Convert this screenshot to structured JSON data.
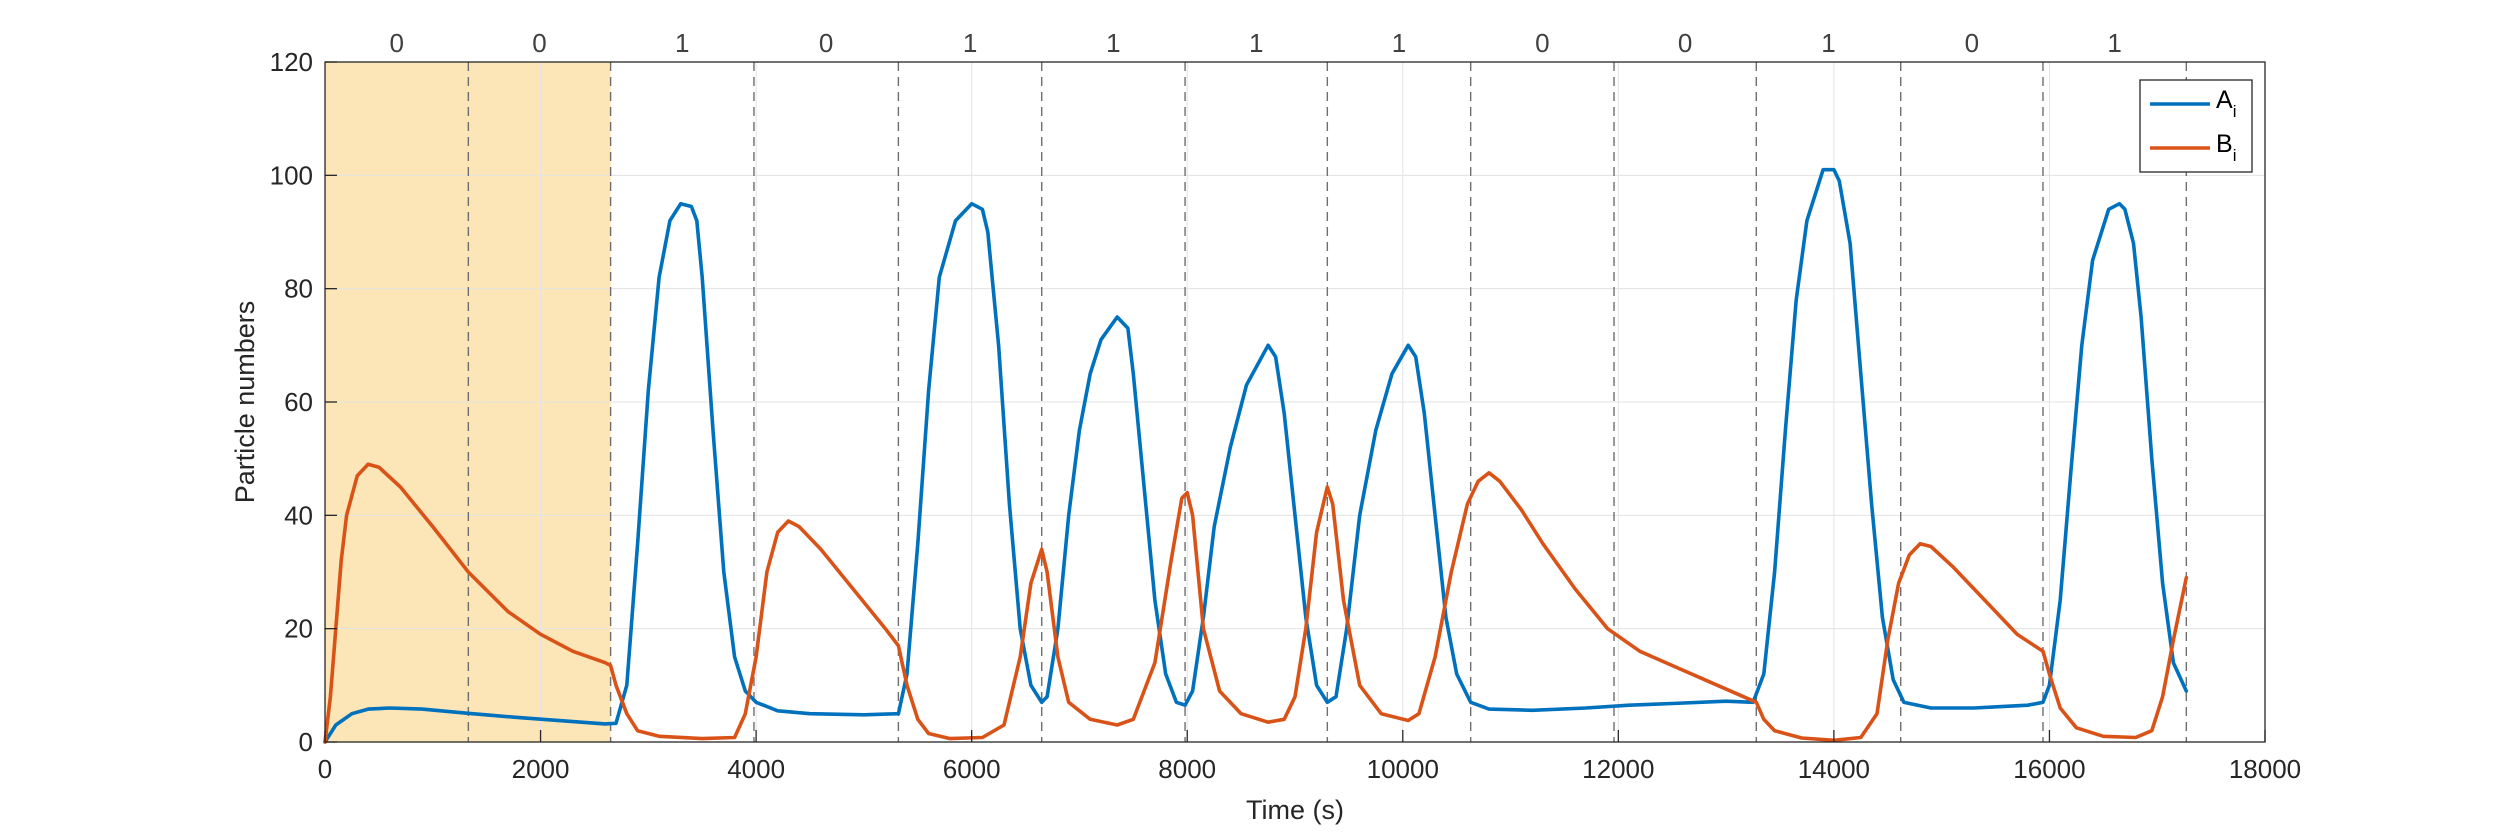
{
  "chart_data": {
    "type": "line",
    "xlabel": "Time (s)",
    "ylabel": "Particle numbers",
    "xlim": [
      0,
      18000
    ],
    "ylim": [
      0,
      120
    ],
    "xticks": [
      0,
      2000,
      4000,
      6000,
      8000,
      10000,
      12000,
      14000,
      16000,
      18000
    ],
    "xtick_labels": [
      "0",
      "2000",
      "4000",
      "6000",
      "8000",
      "10000",
      "12000",
      "14000",
      "16000",
      "18000"
    ],
    "yticks": [
      0,
      20,
      40,
      60,
      80,
      100,
      120
    ],
    "ytick_labels": [
      "0",
      "20",
      "40",
      "60",
      "80",
      "100",
      "120"
    ],
    "grid": true,
    "legend_position": "top-right",
    "legend": [
      {
        "main": "A",
        "sub": "i",
        "color": "#0072BD"
      },
      {
        "main": "B",
        "sub": "i",
        "color": "#D95319"
      }
    ],
    "shaded_region": {
      "x": [
        0,
        2650
      ],
      "color": "#FCE5B6"
    },
    "boundaries": [
      1330,
      2650,
      3980,
      5320,
      6650,
      7980,
      9300,
      10630,
      11960,
      13280,
      14620,
      15940,
      17270
    ],
    "segments": [
      {
        "x_start": 0,
        "x_end": 1330,
        "label": "0"
      },
      {
        "x_start": 1330,
        "x_end": 2650,
        "label": "0"
      },
      {
        "x_start": 2650,
        "x_end": 3980,
        "label": "1"
      },
      {
        "x_start": 3980,
        "x_end": 5320,
        "label": "0"
      },
      {
        "x_start": 5320,
        "x_end": 6650,
        "label": "1"
      },
      {
        "x_start": 6650,
        "x_end": 7980,
        "label": "1"
      },
      {
        "x_start": 7980,
        "x_end": 9300,
        "label": "1"
      },
      {
        "x_start": 9300,
        "x_end": 10630,
        "label": "1"
      },
      {
        "x_start": 10630,
        "x_end": 11960,
        "label": "0"
      },
      {
        "x_start": 11960,
        "x_end": 13280,
        "label": "0"
      },
      {
        "x_start": 13280,
        "x_end": 14620,
        "label": "1"
      },
      {
        "x_start": 14620,
        "x_end": 15940,
        "label": "0"
      },
      {
        "x_start": 15940,
        "x_end": 17270,
        "label": "1"
      }
    ],
    "series": [
      {
        "color": "#0072BD",
        "points": [
          [
            0,
            0
          ],
          [
            100,
            3
          ],
          [
            250,
            5
          ],
          [
            400,
            5.8
          ],
          [
            600,
            6
          ],
          [
            900,
            5.8
          ],
          [
            1300,
            5.1
          ],
          [
            1800,
            4.3
          ],
          [
            2300,
            3.6
          ],
          [
            2600,
            3.2
          ],
          [
            2700,
            3.3
          ],
          [
            2800,
            10
          ],
          [
            2900,
            35
          ],
          [
            3000,
            62
          ],
          [
            3100,
            82
          ],
          [
            3200,
            92
          ],
          [
            3300,
            95
          ],
          [
            3400,
            94.5
          ],
          [
            3450,
            92
          ],
          [
            3500,
            82
          ],
          [
            3600,
            55
          ],
          [
            3700,
            30
          ],
          [
            3800,
            15
          ],
          [
            3900,
            9
          ],
          [
            4000,
            7
          ],
          [
            4200,
            5.5
          ],
          [
            4500,
            5
          ],
          [
            5000,
            4.8
          ],
          [
            5320,
            5
          ],
          [
            5400,
            12
          ],
          [
            5500,
            35
          ],
          [
            5600,
            62
          ],
          [
            5700,
            82
          ],
          [
            5850,
            92
          ],
          [
            6000,
            95
          ],
          [
            6100,
            94
          ],
          [
            6150,
            90
          ],
          [
            6250,
            70
          ],
          [
            6350,
            42
          ],
          [
            6450,
            20
          ],
          [
            6550,
            10
          ],
          [
            6650,
            7
          ],
          [
            6700,
            8
          ],
          [
            6800,
            20
          ],
          [
            6900,
            40
          ],
          [
            7000,
            55
          ],
          [
            7100,
            65
          ],
          [
            7200,
            71
          ],
          [
            7350,
            75
          ],
          [
            7450,
            73
          ],
          [
            7500,
            65
          ],
          [
            7600,
            45
          ],
          [
            7700,
            25
          ],
          [
            7800,
            12
          ],
          [
            7900,
            7
          ],
          [
            7980,
            6.5
          ],
          [
            8050,
            9
          ],
          [
            8150,
            22
          ],
          [
            8250,
            38
          ],
          [
            8400,
            52
          ],
          [
            8550,
            63
          ],
          [
            8750,
            70
          ],
          [
            8820,
            68
          ],
          [
            8900,
            58
          ],
          [
            9000,
            40
          ],
          [
            9100,
            22
          ],
          [
            9200,
            10
          ],
          [
            9300,
            7
          ],
          [
            9380,
            8
          ],
          [
            9480,
            20
          ],
          [
            9600,
            40
          ],
          [
            9750,
            55
          ],
          [
            9900,
            65
          ],
          [
            10050,
            70
          ],
          [
            10120,
            68
          ],
          [
            10200,
            58
          ],
          [
            10300,
            40
          ],
          [
            10400,
            22
          ],
          [
            10500,
            12
          ],
          [
            10630,
            7
          ],
          [
            10800,
            5.8
          ],
          [
            11200,
            5.6
          ],
          [
            11700,
            6
          ],
          [
            12100,
            6.5
          ],
          [
            12500,
            6.8
          ],
          [
            13000,
            7.2
          ],
          [
            13250,
            7
          ],
          [
            13350,
            12
          ],
          [
            13450,
            30
          ],
          [
            13550,
            55
          ],
          [
            13650,
            78
          ],
          [
            13750,
            92
          ],
          [
            13900,
            101
          ],
          [
            14000,
            101
          ],
          [
            14050,
            99
          ],
          [
            14150,
            88
          ],
          [
            14250,
            65
          ],
          [
            14350,
            42
          ],
          [
            14450,
            22
          ],
          [
            14550,
            11
          ],
          [
            14650,
            7
          ],
          [
            14900,
            6
          ],
          [
            15300,
            6
          ],
          [
            15600,
            6.3
          ],
          [
            15800,
            6.5
          ],
          [
            15940,
            7
          ],
          [
            16000,
            10
          ],
          [
            16100,
            25
          ],
          [
            16200,
            48
          ],
          [
            16300,
            70
          ],
          [
            16400,
            85
          ],
          [
            16550,
            94
          ],
          [
            16650,
            95
          ],
          [
            16700,
            94
          ],
          [
            16780,
            88
          ],
          [
            16850,
            75
          ],
          [
            16950,
            50
          ],
          [
            17050,
            28
          ],
          [
            17150,
            14
          ],
          [
            17270,
            9
          ]
        ]
      },
      {
        "color": "#D95319",
        "points": [
          [
            0,
            0
          ],
          [
            50,
            8
          ],
          [
            100,
            20
          ],
          [
            150,
            32
          ],
          [
            200,
            40
          ],
          [
            300,
            47
          ],
          [
            400,
            49
          ],
          [
            500,
            48.5
          ],
          [
            700,
            45
          ],
          [
            1000,
            38
          ],
          [
            1330,
            30
          ],
          [
            1700,
            23
          ],
          [
            2000,
            19
          ],
          [
            2300,
            16
          ],
          [
            2600,
            14
          ],
          [
            2650,
            13.5
          ],
          [
            2700,
            10
          ],
          [
            2800,
            5
          ],
          [
            2900,
            2
          ],
          [
            3100,
            1
          ],
          [
            3500,
            0.6
          ],
          [
            3800,
            0.8
          ],
          [
            3900,
            5
          ],
          [
            4000,
            15
          ],
          [
            4100,
            30
          ],
          [
            4200,
            37
          ],
          [
            4300,
            39
          ],
          [
            4400,
            38
          ],
          [
            4600,
            34
          ],
          [
            4900,
            27
          ],
          [
            5200,
            20
          ],
          [
            5320,
            17
          ],
          [
            5400,
            10
          ],
          [
            5500,
            4
          ],
          [
            5600,
            1.5
          ],
          [
            5800,
            0.6
          ],
          [
            6100,
            0.8
          ],
          [
            6300,
            3
          ],
          [
            6450,
            15
          ],
          [
            6550,
            28
          ],
          [
            6650,
            34
          ],
          [
            6700,
            30
          ],
          [
            6800,
            15
          ],
          [
            6900,
            7
          ],
          [
            7100,
            4
          ],
          [
            7350,
            3
          ],
          [
            7500,
            4
          ],
          [
            7700,
            14
          ],
          [
            7850,
            32
          ],
          [
            7950,
            43
          ],
          [
            8000,
            44
          ],
          [
            8050,
            40
          ],
          [
            8150,
            20
          ],
          [
            8300,
            9
          ],
          [
            8500,
            5
          ],
          [
            8750,
            3.5
          ],
          [
            8900,
            4
          ],
          [
            9000,
            8
          ],
          [
            9100,
            20
          ],
          [
            9200,
            37
          ],
          [
            9300,
            45
          ],
          [
            9350,
            42
          ],
          [
            9450,
            25
          ],
          [
            9600,
            10
          ],
          [
            9800,
            5
          ],
          [
            10050,
            3.8
          ],
          [
            10150,
            5
          ],
          [
            10300,
            15
          ],
          [
            10450,
            30
          ],
          [
            10600,
            42
          ],
          [
            10700,
            46
          ],
          [
            10800,
            47.5
          ],
          [
            10900,
            46
          ],
          [
            11100,
            41
          ],
          [
            11300,
            35
          ],
          [
            11600,
            27
          ],
          [
            11900,
            20
          ],
          [
            12200,
            16
          ],
          [
            12500,
            13.5
          ],
          [
            12800,
            11
          ],
          [
            13100,
            8.5
          ],
          [
            13280,
            7
          ],
          [
            13350,
            4
          ],
          [
            13450,
            2
          ],
          [
            13700,
            0.7
          ],
          [
            14000,
            0.3
          ],
          [
            14250,
            0.8
          ],
          [
            14400,
            5
          ],
          [
            14500,
            18
          ],
          [
            14600,
            28
          ],
          [
            14700,
            33
          ],
          [
            14800,
            35
          ],
          [
            14900,
            34.5
          ],
          [
            15100,
            31
          ],
          [
            15400,
            25
          ],
          [
            15700,
            19
          ],
          [
            15900,
            16.5
          ],
          [
            15940,
            16
          ],
          [
            16000,
            12
          ],
          [
            16100,
            6
          ],
          [
            16250,
            2.5
          ],
          [
            16500,
            1
          ],
          [
            16800,
            0.8
          ],
          [
            16950,
            2
          ],
          [
            17050,
            8
          ],
          [
            17150,
            18
          ],
          [
            17270,
            29
          ]
        ]
      }
    ]
  }
}
